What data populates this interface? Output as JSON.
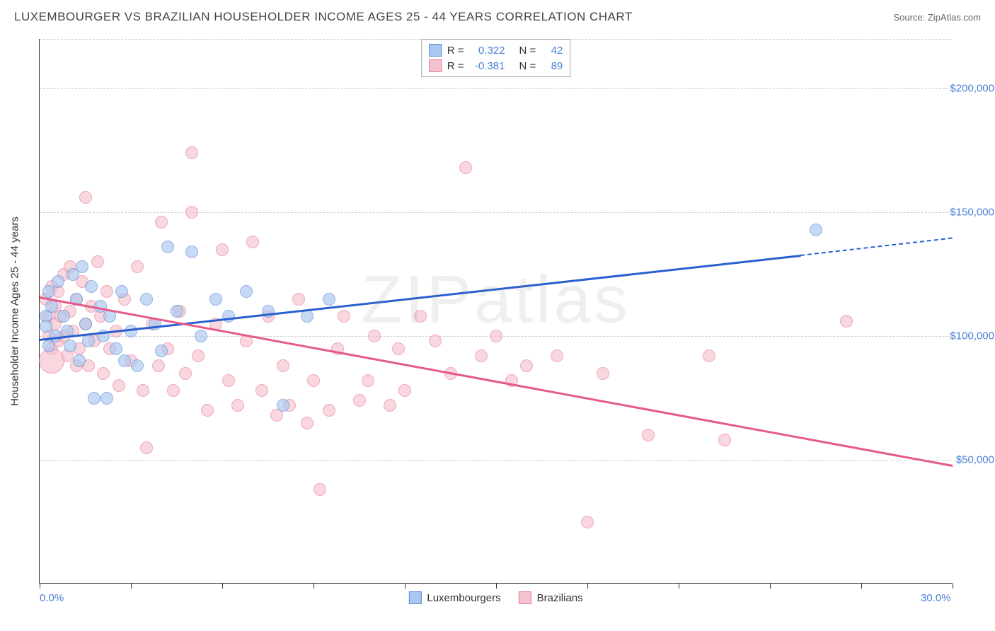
{
  "header": {
    "title": "LUXEMBOURGER VS BRAZILIAN HOUSEHOLDER INCOME AGES 25 - 44 YEARS CORRELATION CHART",
    "source_prefix": "Source: ",
    "source": "ZipAtlas.com"
  },
  "watermark": "ZIPatlas",
  "chart": {
    "type": "scatter",
    "ylabel": "Householder Income Ages 25 - 44 years",
    "xlim": [
      0,
      30
    ],
    "ylim": [
      0,
      220000
    ],
    "background_color": "#ffffff",
    "grid_color": "#cccccc",
    "axis_color": "#333333",
    "label_color": "#4a7fd6",
    "label_fontsize": 15,
    "yticks": [
      {
        "value": 50000,
        "label": "$50,000"
      },
      {
        "value": 100000,
        "label": "$100,000"
      },
      {
        "value": 150000,
        "label": "$150,000"
      },
      {
        "value": 200000,
        "label": "$200,000"
      }
    ],
    "xticks_major": [
      0,
      30
    ],
    "xtick_labels": [
      {
        "value": 0,
        "label": "0.0%"
      },
      {
        "value": 30,
        "label": "30.0%"
      }
    ],
    "xticks_minor": [
      3,
      6,
      9,
      12,
      15,
      18,
      21,
      24,
      27
    ],
    "marker_radius": 9,
    "marker_border_width": 1,
    "marker_fill_opacity": 0.25,
    "series": [
      {
        "name": "Luxembourgers",
        "fill_color": "#a9c7f0",
        "border_color": "#5b8bd4",
        "line_color": "#2a5fd0",
        "R": "0.322",
        "N": "42",
        "trend": {
          "x1": 0,
          "y1": 99000,
          "x2": 25,
          "y2": 133000,
          "dash_to_x": 30,
          "dash_to_y": 140000
        },
        "points": [
          [
            0.2,
            108000
          ],
          [
            0.2,
            104000
          ],
          [
            0.3,
            96000
          ],
          [
            0.3,
            118000
          ],
          [
            0.4,
            112000
          ],
          [
            0.5,
            100000
          ],
          [
            0.6,
            122000
          ],
          [
            0.8,
            108000
          ],
          [
            0.9,
            102000
          ],
          [
            1.0,
            96000
          ],
          [
            1.1,
            125000
          ],
          [
            1.2,
            115000
          ],
          [
            1.3,
            90000
          ],
          [
            1.4,
            128000
          ],
          [
            1.5,
            105000
          ],
          [
            1.6,
            98000
          ],
          [
            1.7,
            120000
          ],
          [
            1.8,
            75000
          ],
          [
            2.0,
            112000
          ],
          [
            2.1,
            100000
          ],
          [
            2.2,
            75000
          ],
          [
            2.3,
            108000
          ],
          [
            2.5,
            95000
          ],
          [
            2.7,
            118000
          ],
          [
            2.8,
            90000
          ],
          [
            3.0,
            102000
          ],
          [
            3.2,
            88000
          ],
          [
            3.5,
            115000
          ],
          [
            3.8,
            105000
          ],
          [
            4.0,
            94000
          ],
          [
            4.2,
            136000
          ],
          [
            4.5,
            110000
          ],
          [
            5.0,
            134000
          ],
          [
            5.3,
            100000
          ],
          [
            5.8,
            115000
          ],
          [
            6.2,
            108000
          ],
          [
            6.8,
            118000
          ],
          [
            7.5,
            110000
          ],
          [
            8.0,
            72000
          ],
          [
            8.8,
            108000
          ],
          [
            9.5,
            115000
          ],
          [
            25.5,
            143000
          ]
        ]
      },
      {
        "name": "Brazilians",
        "fill_color": "#f5c3cf",
        "border_color": "#e97a9a",
        "line_color": "#e55a8a",
        "R": "-0.381",
        "N": "89",
        "trend": {
          "x1": 0,
          "y1": 116000,
          "x2": 30,
          "y2": 48000
        },
        "points": [
          [
            0.2,
            115000
          ],
          [
            0.3,
            108000
          ],
          [
            0.3,
            100000
          ],
          [
            0.4,
            120000
          ],
          [
            0.4,
            95000
          ],
          [
            0.5,
            112000
          ],
          [
            0.5,
            105000
          ],
          [
            0.6,
            98000
          ],
          [
            0.6,
            118000
          ],
          [
            0.7,
            108000
          ],
          [
            0.8,
            125000
          ],
          [
            0.8,
            100000
          ],
          [
            0.9,
            92000
          ],
          [
            1.0,
            110000
          ],
          [
            1.0,
            128000
          ],
          [
            1.1,
            102000
          ],
          [
            1.2,
            88000
          ],
          [
            1.2,
            115000
          ],
          [
            1.3,
            95000
          ],
          [
            1.4,
            122000
          ],
          [
            1.5,
            156000
          ],
          [
            1.5,
            105000
          ],
          [
            1.6,
            88000
          ],
          [
            1.7,
            112000
          ],
          [
            1.8,
            98000
          ],
          [
            1.9,
            130000
          ],
          [
            2.0,
            108000
          ],
          [
            2.1,
            85000
          ],
          [
            2.2,
            118000
          ],
          [
            2.3,
            95000
          ],
          [
            2.5,
            102000
          ],
          [
            2.6,
            80000
          ],
          [
            2.8,
            115000
          ],
          [
            3.0,
            90000
          ],
          [
            3.2,
            128000
          ],
          [
            3.4,
            78000
          ],
          [
            3.5,
            55000
          ],
          [
            3.7,
            105000
          ],
          [
            3.9,
            88000
          ],
          [
            4.0,
            146000
          ],
          [
            4.2,
            95000
          ],
          [
            4.4,
            78000
          ],
          [
            4.6,
            110000
          ],
          [
            4.8,
            85000
          ],
          [
            5.0,
            150000
          ],
          [
            5.0,
            174000
          ],
          [
            5.2,
            92000
          ],
          [
            5.5,
            70000
          ],
          [
            5.8,
            105000
          ],
          [
            6.0,
            135000
          ],
          [
            6.2,
            82000
          ],
          [
            6.5,
            72000
          ],
          [
            6.8,
            98000
          ],
          [
            7.0,
            138000
          ],
          [
            7.3,
            78000
          ],
          [
            7.5,
            108000
          ],
          [
            7.8,
            68000
          ],
          [
            8.0,
            88000
          ],
          [
            8.2,
            72000
          ],
          [
            8.5,
            115000
          ],
          [
            8.8,
            65000
          ],
          [
            9.0,
            82000
          ],
          [
            9.2,
            38000
          ],
          [
            9.5,
            70000
          ],
          [
            9.8,
            95000
          ],
          [
            10.0,
            108000
          ],
          [
            10.5,
            74000
          ],
          [
            10.8,
            82000
          ],
          [
            11.0,
            100000
          ],
          [
            11.5,
            72000
          ],
          [
            11.8,
            95000
          ],
          [
            12.0,
            78000
          ],
          [
            12.5,
            108000
          ],
          [
            13.0,
            98000
          ],
          [
            13.5,
            85000
          ],
          [
            14.0,
            168000
          ],
          [
            14.5,
            92000
          ],
          [
            15.0,
            100000
          ],
          [
            15.5,
            82000
          ],
          [
            16.0,
            88000
          ],
          [
            17.0,
            92000
          ],
          [
            18.0,
            25000
          ],
          [
            18.5,
            85000
          ],
          [
            20.0,
            60000
          ],
          [
            22.0,
            92000
          ],
          [
            22.5,
            58000
          ],
          [
            26.5,
            106000
          ],
          [
            0.4,
            90000,
            18
          ]
        ]
      }
    ]
  },
  "legend_bottom": [
    {
      "label": "Luxembourgers",
      "fill": "#a9c7f0",
      "border": "#5b8bd4"
    },
    {
      "label": "Brazilians",
      "fill": "#f5c3cf",
      "border": "#e97a9a"
    }
  ]
}
